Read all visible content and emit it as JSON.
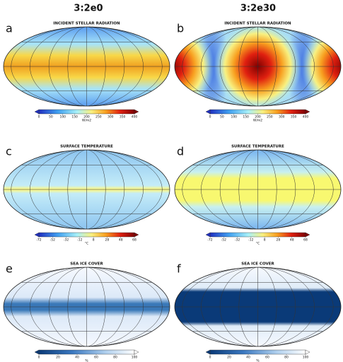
{
  "columns": [
    "3:2e0",
    "3:2e30"
  ],
  "panels": [
    {
      "letter": "a",
      "title": "INCIDENT STELLAR RADIATION",
      "colorbar": {
        "ticks": [
          0,
          50,
          100,
          150,
          200,
          250,
          300,
          350,
          400
        ],
        "unit": "W/m2"
      }
    },
    {
      "letter": "b",
      "title": "INCIDENT STELLAR RADIATION",
      "colorbar": {
        "ticks": [
          0,
          50,
          100,
          150,
          200,
          250,
          300,
          350,
          400
        ],
        "unit": "W/m2"
      }
    },
    {
      "letter": "c",
      "title": "SURFACE TEMPERATURE",
      "colorbar": {
        "ticks": [
          -72,
          -52,
          -32,
          -12,
          8,
          28,
          48,
          68
        ],
        "unit": "°C"
      }
    },
    {
      "letter": "d",
      "title": "SURFACE TEMPERATURE",
      "colorbar": {
        "ticks": [
          -72,
          -52,
          -32,
          -12,
          8,
          28,
          48,
          68
        ],
        "unit": "°C"
      }
    },
    {
      "letter": "e",
      "title": "SEA ICE COVER",
      "colorbar": {
        "ticks": [
          0,
          20,
          40,
          60,
          80,
          100
        ],
        "unit": "%"
      }
    },
    {
      "letter": "f",
      "title": "SEA ICE COVER",
      "colorbar": {
        "ticks": [
          0,
          20,
          40,
          60,
          80,
          100
        ],
        "unit": "%"
      }
    }
  ]
}
